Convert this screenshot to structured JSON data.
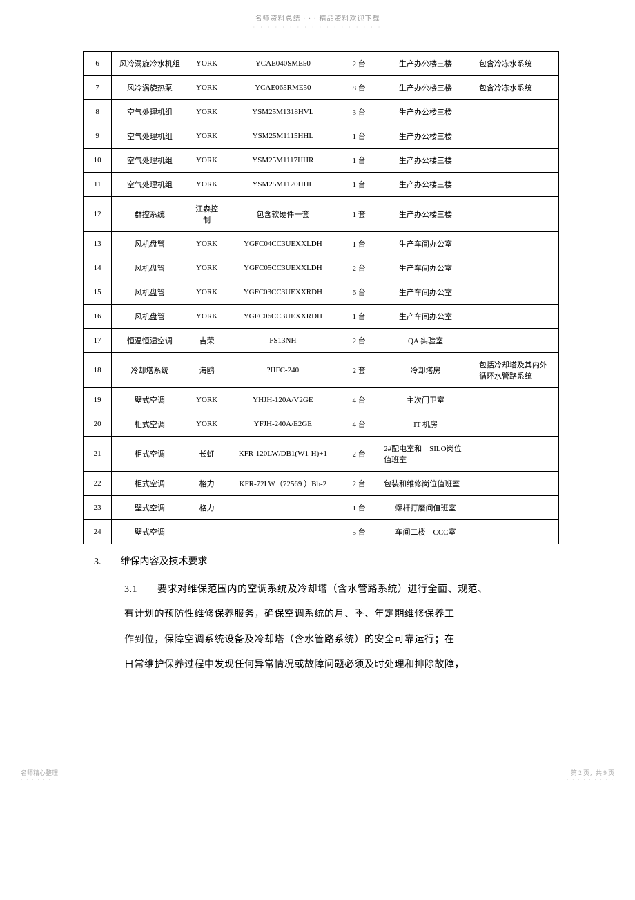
{
  "header": {
    "line1": "名师资料总结 · · · 精品资料欢迎下载",
    "dots": "· · · · · · · · · · · · · · · · · ·"
  },
  "table": {
    "rows": [
      {
        "n": "6",
        "name": "风冷涡旋冷水机组",
        "brand": "YORK",
        "model": "YCAE040SME50",
        "qty": "2 台",
        "loc": "生产办公楼三楼",
        "note": "包含冷冻水系统"
      },
      {
        "n": "7",
        "name": "风冷涡旋热泵",
        "brand": "YORK",
        "model": "YCAE065RME50",
        "qty": "8 台",
        "loc": "生产办公楼三楼",
        "note": "包含冷冻水系统"
      },
      {
        "n": "8",
        "name": "空气处理机组",
        "brand": "YORK",
        "model": "YSM25M1318HVL",
        "qty": "3 台",
        "loc": "生产办公楼三楼",
        "note": ""
      },
      {
        "n": "9",
        "name": "空气处理机组",
        "brand": "YORK",
        "model": "YSM25M1115HHL",
        "qty": "1 台",
        "loc": "生产办公楼三楼",
        "note": ""
      },
      {
        "n": "10",
        "name": "空气处理机组",
        "brand": "YORK",
        "model": "YSM25M1117HHR",
        "qty": "1 台",
        "loc": "生产办公楼三楼",
        "note": ""
      },
      {
        "n": "11",
        "name": "空气处理机组",
        "brand": "YORK",
        "model": "YSM25M1120HHL",
        "qty": "1 台",
        "loc": "生产办公楼三楼",
        "note": ""
      },
      {
        "n": "12",
        "name": "群控系统",
        "brand": "江森控制",
        "model": "包含软硬件一套",
        "qty": "1 套",
        "loc": "生产办公楼三楼",
        "note": ""
      },
      {
        "n": "13",
        "name": "风机盘管",
        "brand": "YORK",
        "model": "YGFC04CC3UEXXLDH",
        "qty": "1 台",
        "loc": "生产车间办公室",
        "note": ""
      },
      {
        "n": "14",
        "name": "风机盘管",
        "brand": "YORK",
        "model": "YGFC05CC3UEXXLDH",
        "qty": "2 台",
        "loc": "生产车间办公室",
        "note": ""
      },
      {
        "n": "15",
        "name": "风机盘管",
        "brand": "YORK",
        "model": "YGFC03CC3UEXXRDH",
        "qty": "6 台",
        "loc": "生产车间办公室",
        "note": ""
      },
      {
        "n": "16",
        "name": "风机盘管",
        "brand": "YORK",
        "model": "YGFC06CC3UEXXRDH",
        "qty": "1 台",
        "loc": "生产车间办公室",
        "note": ""
      },
      {
        "n": "17",
        "name": "恒温恒湿空调",
        "brand": "吉荣",
        "model": "FS13NH",
        "qty": "2 台",
        "loc": "QA 实验室",
        "note": ""
      },
      {
        "n": "18",
        "name": "冷却塔系统",
        "brand": "海鸥",
        "model": "?HFC-240",
        "qty": "2 套",
        "loc": "冷却塔房",
        "note": "包括冷却塔及其内外循环水管路系统"
      },
      {
        "n": "19",
        "name": "壁式空调",
        "brand": "YORK",
        "model": "YHJH-120A/V2GE",
        "qty": "4 台",
        "loc": "主次门卫室",
        "note": ""
      },
      {
        "n": "20",
        "name": "柜式空调",
        "brand": "YORK",
        "model": "YFJH-240A/E2GE",
        "qty": "4 台",
        "loc": "IT 机房",
        "note": ""
      },
      {
        "n": "21",
        "name": "柜式空调",
        "brand": "长虹",
        "model": "KFR-120LW/DB1(W1-H)+1",
        "qty": "2 台",
        "loc": "2#配电室和　SILO岗位值班室",
        "note": ""
      },
      {
        "n": "22",
        "name": "柜式空调",
        "brand": "格力",
        "model": "KFR-72LW（72569 ）Bb-2",
        "qty": "2 台",
        "loc": "包装和维修岗位值班室",
        "note": ""
      },
      {
        "n": "23",
        "name": "壁式空调",
        "brand": "格力",
        "model": "",
        "qty": "1 台",
        "loc": "螺杆打磨间值班室",
        "note": ""
      },
      {
        "n": "24",
        "name": "壁式空调",
        "brand": "",
        "model": "",
        "qty": "5 台",
        "loc": "车间二楼　CCC室",
        "note": ""
      }
    ]
  },
  "section": {
    "title": "3.　　维保内容及技术要求",
    "para_lead": "3.1　　要求对维保范围内的空调系统及冷却塔（含水管路系统）进行全面、规范、",
    "para_l2": "有计划的预防性维修保养服务，确保空调系统的月、季、年定期维修保养工",
    "para_l3": "作到位，保障空调系统设备及冷却塔（含水管路系统）的安全可靠运行；在",
    "para_l4": "日常维护保养过程中发现任何异常情况或故障问题必须及时处理和排除故障，"
  },
  "footer": {
    "left": "名师精心整理",
    "left_dots": "· · · · · · ·",
    "right": "第 2 页，共 9 页",
    "right_dots": "· · · · · · · · ·"
  }
}
